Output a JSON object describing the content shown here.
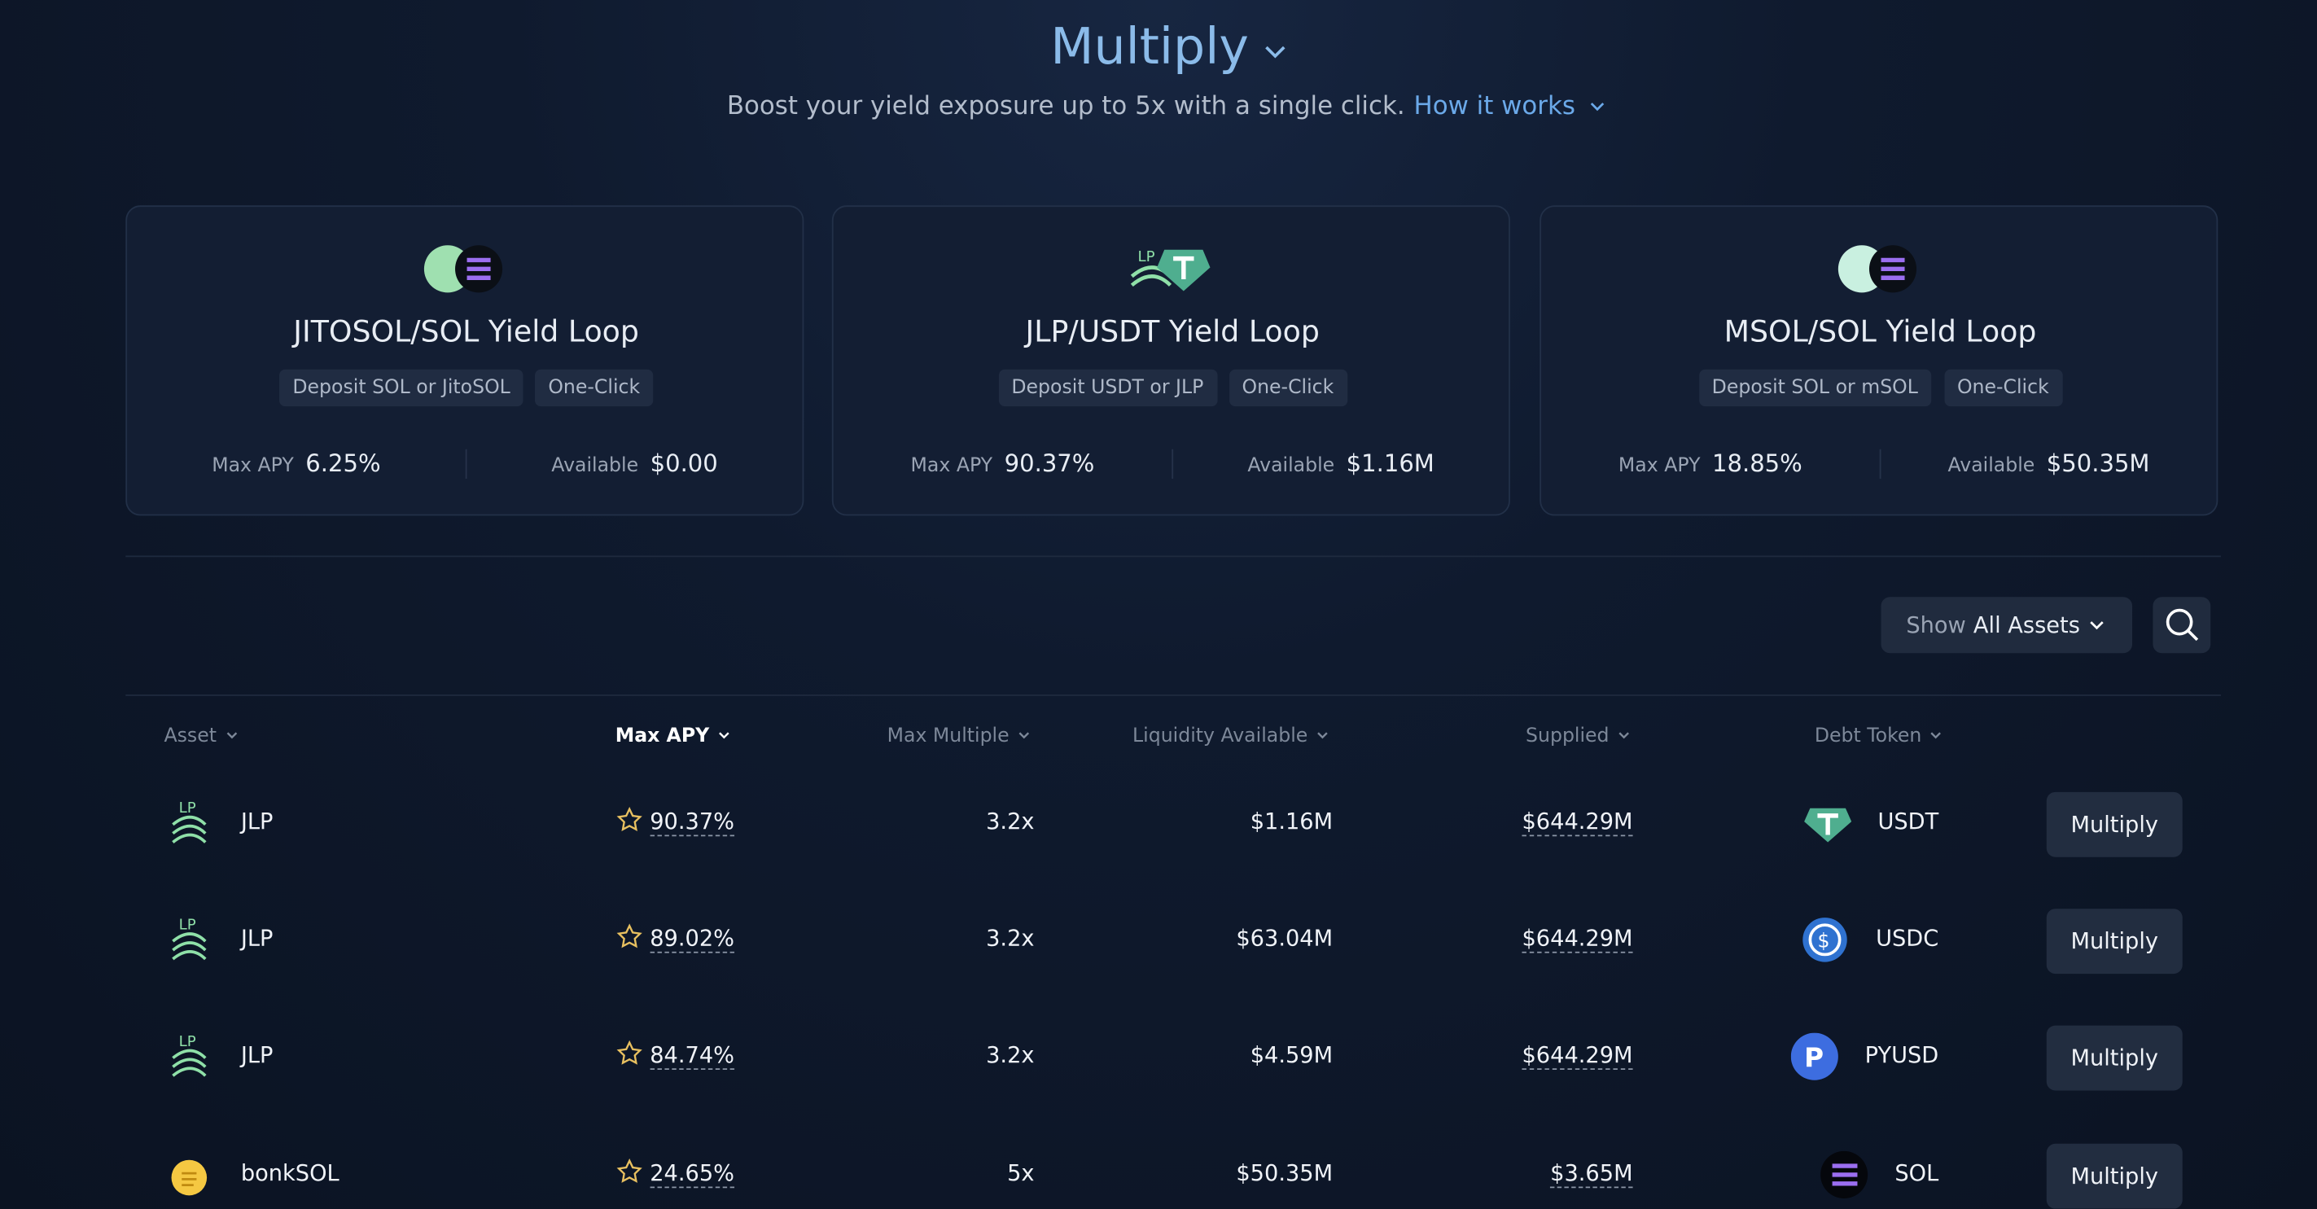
{
  "header": {
    "title": "Multiply",
    "subtitle": "Boost your yield exposure up to 5x with a single click.",
    "link": "How it works"
  },
  "cards": [
    {
      "title": "JITOSOL/SOL Yield Loop",
      "tags": [
        "Deposit SOL or JitoSOL",
        "One-Click"
      ],
      "apy_label": "Max APY",
      "apy": "6.25%",
      "available_label": "Available",
      "available": "$0.00"
    },
    {
      "title": "JLP/USDT Yield Loop",
      "tags": [
        "Deposit USDT or JLP",
        "One-Click"
      ],
      "apy_label": "Max APY",
      "apy": "90.37%",
      "available_label": "Available",
      "available": "$1.16M"
    },
    {
      "title": "MSOL/SOL Yield Loop",
      "tags": [
        "Deposit SOL or mSOL",
        "One-Click"
      ],
      "apy_label": "Max APY",
      "apy": "18.85%",
      "available_label": "Available",
      "available": "$50.35M"
    }
  ],
  "filter": {
    "prefix": "Show",
    "value": "All Assets"
  },
  "table": {
    "columns": [
      "Asset",
      "Max APY",
      "Max Multiple",
      "Liquidity Available",
      "Supplied",
      "Debt Token"
    ],
    "rows": [
      [
        "JLP",
        "90.37%",
        "3.2x",
        "$1.16M",
        "$644.29M",
        "USDT",
        "Multiply"
      ],
      [
        "JLP",
        "89.02%",
        "3.2x",
        "$63.04M",
        "$644.29M",
        "USDC",
        "Multiply"
      ],
      [
        "JLP",
        "84.74%",
        "3.2x",
        "$4.59M",
        "$644.29M",
        "PYUSD",
        "Multiply"
      ],
      [
        "bonkSOL",
        "24.65%",
        "5x",
        "$50.35M",
        "$3.65M",
        "SOL",
        "Multiply"
      ]
    ]
  }
}
